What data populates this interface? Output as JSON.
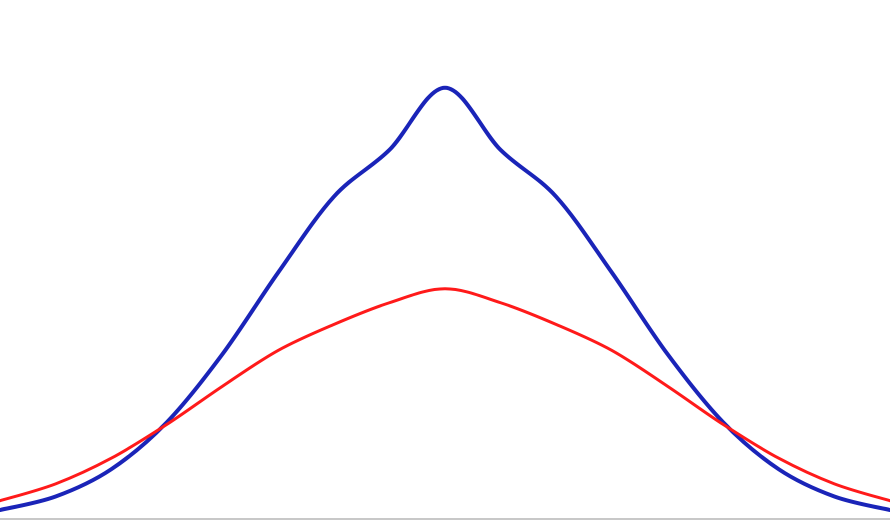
{
  "chart_data": {
    "type": "line",
    "title": "",
    "xlabel": "",
    "ylabel": "",
    "grid": false,
    "legend": "none",
    "xlim": [
      -4,
      4
    ],
    "ylim": [
      0,
      0.48
    ],
    "x": [
      -4.0,
      -3.5,
      -3.0,
      -2.5,
      -2.0,
      -1.5,
      -1.0,
      -0.5,
      0.0,
      0.5,
      1.0,
      1.5,
      2.0,
      2.5,
      3.0,
      3.5,
      4.0
    ],
    "series": [
      {
        "color": "#1a24b8",
        "values": [
          0.0083,
          0.0208,
          0.046,
          0.0895,
          0.1525,
          0.2279,
          0.298,
          0.3413,
          0.3989,
          0.3413,
          0.298,
          0.2279,
          0.1525,
          0.0895,
          0.046,
          0.0208,
          0.0083
        ]
      },
      {
        "color": "#ff1a1a",
        "values": [
          0.0169,
          0.0325,
          0.0562,
          0.0875,
          0.1228,
          0.1559,
          0.1799,
          0.2,
          0.2129,
          0.2,
          0.1799,
          0.1559,
          0.1228,
          0.0875,
          0.0562,
          0.0325,
          0.0169
        ]
      }
    ],
    "axis_color": "#c8c8c8"
  }
}
